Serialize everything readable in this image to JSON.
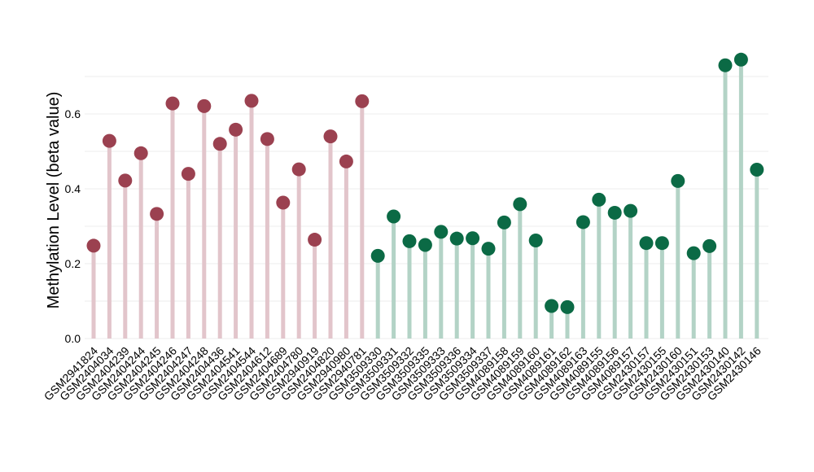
{
  "chart_data": {
    "type": "lollipop",
    "ylabel": "Methylation Level (beta value)",
    "ylim": [
      0,
      0.7
    ],
    "yticks": [
      0.0,
      0.2,
      0.4,
      0.6
    ],
    "ytick_labels": [
      "0.0",
      "0.2",
      "0.4",
      "0.6"
    ],
    "grid": true,
    "colors": {
      "group1_dot": "#9b4150",
      "group1_stem": "#e2c5cb",
      "group2_dot": "#0b6a45",
      "group2_stem": "#b3d3c6"
    },
    "categories": [
      "GSM2941824",
      "GSM2404034",
      "GSM2404239",
      "GSM2404244",
      "GSM2404245",
      "GSM2404246",
      "GSM2404247",
      "GSM2404248",
      "GSM2404436",
      "GSM2404541",
      "GSM2404544",
      "GSM2404612",
      "GSM2404689",
      "GSM2404780",
      "GSM2940919",
      "GSM2404820",
      "GSM2940980",
      "GSM2940781",
      "GSM3509330",
      "GSM3509331",
      "GSM3509332",
      "GSM3509335",
      "GSM3509333",
      "GSM3509336",
      "GSM3509334",
      "GSM3509337",
      "GSM4089158",
      "GSM4089159",
      "GSM4089160",
      "GSM4089161",
      "GSM4089162",
      "GSM4089163",
      "GSM4089155",
      "GSM4089156",
      "GSM4089157",
      "GSM2430157",
      "GSM2430155",
      "GSM2430160",
      "GSM2430151",
      "GSM2430153",
      "GSM2430140",
      "GSM2430142",
      "GSM2430146"
    ],
    "values": [
      0.248,
      0.528,
      0.422,
      0.495,
      0.333,
      0.628,
      0.44,
      0.621,
      0.52,
      0.558,
      0.635,
      0.533,
      0.363,
      0.452,
      0.264,
      0.54,
      0.473,
      0.634,
      0.221,
      0.326,
      0.26,
      0.25,
      0.285,
      0.267,
      0.268,
      0.24,
      0.31,
      0.359,
      0.262,
      0.087,
      0.084,
      0.311,
      0.371,
      0.336,
      0.341,
      0.255,
      0.255,
      0.421,
      0.228,
      0.247,
      0.73,
      0.745,
      0.451
    ],
    "group": [
      1,
      1,
      1,
      1,
      1,
      1,
      1,
      1,
      1,
      1,
      1,
      1,
      1,
      1,
      1,
      1,
      1,
      1,
      2,
      2,
      2,
      2,
      2,
      2,
      2,
      2,
      2,
      2,
      2,
      2,
      2,
      2,
      2,
      2,
      2,
      2,
      2,
      2,
      2,
      2,
      2,
      2,
      2
    ]
  }
}
